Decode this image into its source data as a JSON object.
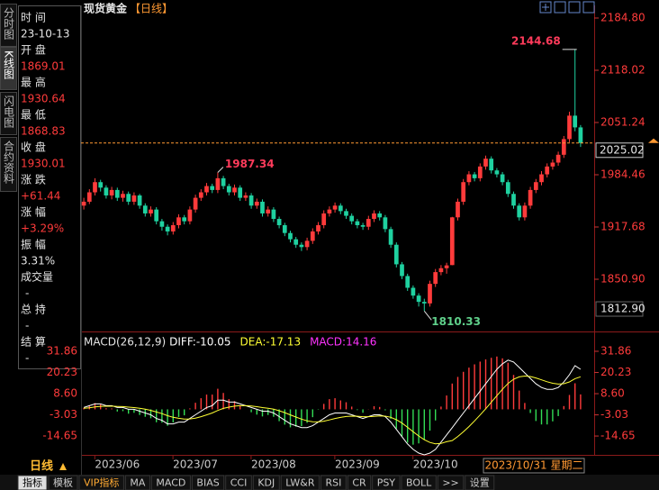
{
  "app": {
    "sidebar": [
      "分时图",
      "K线图",
      "闪电图",
      "合约资料"
    ],
    "info": {
      "time_label": "时 间",
      "date": "23-10-13",
      "open_label": "开 盘",
      "high_label": "最 高",
      "low_label": "最 低",
      "close_label": "收 盘",
      "change_label": "涨 跌",
      "change": "+61.44",
      "pct_label": "涨 幅",
      "pct": "+3.29%",
      "amp_label": "振 幅",
      "amp": "3.31%",
      "vol_label": "成交量",
      "vol": "-",
      "oi_label": "总 持",
      "oi": "-",
      "settle_label": "结 算",
      "settle": "-"
    },
    "period": "日线",
    "cursor_date": "2023/10/31 星期二",
    "tabs": [
      "指标",
      "模板",
      "VIP指标",
      "MA",
      "MACD",
      "BIAS",
      "CCI",
      "KDJ",
      "LW&R",
      "RSI",
      "CR",
      "PSY",
      "BOLL",
      ">>",
      "设置"
    ]
  },
  "chart_data": [
    {
      "type": "candlestick",
      "title": "现货黄金",
      "subtitle": "【日线】",
      "categories": [
        null,
        null,
        null,
        null,
        null,
        null,
        "2023/06",
        null,
        null,
        null,
        null,
        null,
        null,
        null,
        null,
        null,
        null,
        null,
        null,
        null,
        "2023/07",
        null,
        null,
        null,
        null,
        null,
        null,
        null,
        null,
        null,
        null,
        null,
        null,
        null,
        "2023/08",
        null,
        null,
        null,
        null,
        null,
        null,
        null,
        null,
        null,
        null,
        null,
        null,
        null,
        null,
        "2023/09",
        null,
        null,
        null,
        null,
        null,
        null,
        null,
        null,
        null,
        null,
        null,
        null,
        null,
        "2023/10",
        null,
        null,
        null,
        null,
        null,
        null,
        null,
        null,
        null,
        null,
        null,
        null,
        null,
        null,
        null,
        null,
        null,
        null,
        null,
        null,
        null,
        null,
        null,
        null,
        null,
        null
      ],
      "open": [
        1945,
        1950,
        1962,
        1975,
        1968,
        1958,
        1965,
        1955,
        1960,
        1950,
        1958,
        1945,
        1935,
        1940,
        1925,
        1918,
        1912,
        1920,
        1930,
        1925,
        1940,
        1955,
        1962,
        1970,
        1965,
        1980,
        1970,
        1962,
        1968,
        1955,
        1958,
        1945,
        1950,
        1935,
        1940,
        1928,
        1920,
        1910,
        1902,
        1895,
        1892,
        1900,
        1912,
        1920,
        1935,
        1940,
        1945,
        1938,
        1932,
        1925,
        1920,
        1918,
        1928,
        1935,
        1930,
        1915,
        1895,
        1870,
        1855,
        1840,
        1830,
        1822,
        1820,
        1845,
        1860,
        1865,
        1869.01,
        1930.01,
        1950,
        1975,
        1985,
        1980,
        1995,
        2005,
        1990,
        1985,
        1975,
        1960,
        1945,
        1930,
        1945,
        1965,
        1975,
        1985,
        1995,
        2000,
        2010,
        2030,
        2060,
        2045
      ],
      "high": [
        1955,
        1966,
        1980,
        1978,
        1971,
        1969,
        1968,
        1964,
        1963,
        1962,
        1960,
        1948,
        1944,
        1943,
        1928,
        1921,
        1924,
        1934,
        1933,
        1944,
        1959,
        1966,
        1974,
        1973,
        1987.34,
        1983,
        1973,
        1972,
        1971,
        1962,
        1961,
        1954,
        1953,
        1944,
        1943,
        1931,
        1923,
        1913,
        1905,
        1898,
        1904,
        1916,
        1924,
        1939,
        1944,
        1949,
        1948,
        1941,
        1935,
        1928,
        1923,
        1932,
        1939,
        1938,
        1933,
        1918,
        1898,
        1873,
        1858,
        1843,
        1833,
        1826,
        1849,
        1864,
        1869,
        1872,
        1930.64,
        1954,
        1979,
        1989,
        1988,
        1999,
        2009,
        2008,
        1993,
        1988,
        1978,
        1963,
        1948,
        1949,
        1969,
        1979,
        1989,
        1999,
        2004,
        2014,
        2034,
        2065,
        2144.68,
        2048
      ],
      "low": [
        1940,
        1947,
        1958,
        1963,
        1954,
        1953,
        1951,
        1950,
        1946,
        1946,
        1941,
        1931,
        1931,
        1921,
        1913,
        1907,
        1908,
        1916,
        1921,
        1921,
        1936,
        1951,
        1958,
        1961,
        1961,
        1966,
        1958,
        1958,
        1951,
        1951,
        1941,
        1941,
        1931,
        1931,
        1924,
        1916,
        1906,
        1898,
        1891,
        1887,
        1888,
        1896,
        1908,
        1916,
        1931,
        1936,
        1934,
        1928,
        1921,
        1916,
        1914,
        1914,
        1924,
        1926,
        1911,
        1891,
        1866,
        1851,
        1836,
        1826,
        1816,
        1810.33,
        1816,
        1841,
        1856,
        1858,
        1868.83,
        1926,
        1946,
        1971,
        1976,
        1976,
        1991,
        1986,
        1981,
        1971,
        1956,
        1941,
        1926,
        1926,
        1941,
        1961,
        1971,
        1981,
        1991,
        1996,
        2006,
        2026,
        2040,
        2020
      ],
      "close": [
        1950,
        1962,
        1975,
        1968,
        1958,
        1965,
        1955,
        1960,
        1950,
        1958,
        1945,
        1935,
        1940,
        1925,
        1918,
        1912,
        1920,
        1930,
        1925,
        1940,
        1955,
        1962,
        1970,
        1965,
        1980,
        1970,
        1962,
        1968,
        1955,
        1958,
        1945,
        1950,
        1935,
        1940,
        1928,
        1920,
        1910,
        1902,
        1895,
        1892,
        1900,
        1912,
        1920,
        1935,
        1940,
        1945,
        1938,
        1932,
        1925,
        1920,
        1918,
        1928,
        1935,
        1930,
        1915,
        1895,
        1870,
        1855,
        1840,
        1830,
        1822,
        1820,
        1845,
        1860,
        1865,
        1868.57,
        1930.01,
        1950,
        1975,
        1985,
        1980,
        1995,
        2005,
        1990,
        1985,
        1975,
        1960,
        1945,
        1930,
        1945,
        1965,
        1975,
        1985,
        1995,
        2000,
        2010,
        2030,
        2060,
        2045,
        2025.02
      ],
      "up_color": "#ff3b3b",
      "down_color": "#1fd1a0",
      "last_color": "#ff9933",
      "ylim": [
        1787.6,
        2198.6
      ],
      "yticks": [
        {
          "value": 2184.8,
          "label": "2184.80"
        },
        2118.02,
        2051.24,
        1984.46,
        1917.68,
        {
          "value": 1850.9,
          "label": "1850.90"
        }
      ],
      "ymin_label": {
        "value": 1812.9,
        "label": "1812.90"
      },
      "annotations": [
        2144.68,
        1987.34,
        1810.33
      ]
    },
    {
      "type": "macd",
      "title": "MACD(26,12,9)",
      "legend": [
        "DIFF:-10.05",
        "DEA:-17.13",
        "MACD:14.16"
      ],
      "series": [
        {
          "color": "#ffffff",
          "values": [
            1,
            2,
            3,
            3,
            2,
            2,
            1,
            1,
            0,
            0,
            -1,
            -2,
            -3,
            -5,
            -6,
            -8,
            -8,
            -7,
            -7,
            -5,
            -3,
            -1,
            1,
            2,
            5,
            5,
            4,
            4,
            3,
            2,
            1,
            0,
            -1,
            -1,
            -2,
            -4,
            -6,
            -8,
            -9,
            -10,
            -10,
            -9,
            -7,
            -5,
            -3,
            -2,
            -2,
            -2,
            -3,
            -4,
            -5,
            -4,
            -3,
            -3,
            -4,
            -7,
            -11,
            -15,
            -19,
            -22,
            -24,
            -25,
            -24,
            -22,
            -18,
            -14,
            -10.05,
            -6,
            -2,
            2,
            6,
            10,
            14,
            18,
            22,
            25,
            27,
            26,
            23,
            20,
            17,
            14,
            12,
            11,
            11,
            12,
            15,
            19,
            24,
            22
          ]
        },
        {
          "color": "#ffff33",
          "values": [
            0.6,
            0.88,
            1.3,
            1.64,
            1.71,
            1.77,
            1.62,
            1.49,
            1.19,
            0.95,
            0.56,
            0.05,
            -0.56,
            -1.45,
            -2.36,
            -3.49,
            -4.39,
            -4.91,
            -5.33,
            -5.26,
            -4.81,
            -4.05,
            -3.04,
            -2.03,
            -0.63,
            0.5,
            1.2,
            1.76,
            2.0,
            2.0,
            1.8,
            1.44,
            0.95,
            0.56,
            0.05,
            -0.76,
            -1.81,
            -3.05,
            -4.24,
            -5.39,
            -6.31,
            -6.85,
            -6.88,
            -6.5,
            -5.8,
            -5.04,
            -4.43,
            -3.95,
            -3.76,
            -3.8,
            -4.04,
            -4.03,
            -3.83,
            -3.66,
            -3.73,
            -4.38,
            -5.71,
            -7.56,
            -9.85,
            -12.28,
            -14.63,
            -16.7,
            -18.16,
            -18.93,
            -18.74,
            -17.8,
            -17.13,
            -14.9,
            -12.32,
            -9.46,
            -6.37,
            -3.1,
            0.32,
            3.86,
            7.49,
            10.99,
            14.19,
            16.55,
            17.84,
            18.27,
            18.02,
            17.21,
            16.17,
            15.14,
            14.31,
            13.85,
            14.08,
            15.06,
            16.85,
            17.88
          ]
        },
        {
          "color": "#ff33ff",
          "values": [
            0.8,
            2.2,
            3.4,
            2.7,
            0.6,
            0.5,
            -1.2,
            -1.0,
            -2.4,
            -1.9,
            -3.1,
            -4.1,
            -4.9,
            -7.1,
            -7.3,
            -9.0,
            -7.2,
            -4.2,
            -3.3,
            0.5,
            3.6,
            6.1,
            8.1,
            8.1,
            11.3,
            9.0,
            5.6,
            4.5,
            2.0,
            0,
            -1.6,
            -2.9,
            -3.9,
            -3.1,
            -4.1,
            -6.5,
            -8.4,
            -9.9,
            -9.5,
            -9.2,
            -7.4,
            -4.3,
            -0.2,
            3.0,
            5.6,
            6.1,
            4.9,
            3.9,
            1.5,
            -0.4,
            -1.9,
            0.1,
            1.7,
            1.3,
            -0.5,
            -5.2,
            -10.6,
            -14.9,
            -18.3,
            -19.4,
            -18.7,
            -16.6,
            -11.7,
            -6.1,
            1.5,
            7.6,
            14.16,
            17.8,
            20.6,
            22.9,
            24.7,
            26.2,
            27.4,
            28.3,
            29.0,
            28.0,
            25.6,
            18.9,
            10.3,
            3.5,
            -2.0,
            -6.4,
            -8.3,
            -8.3,
            -6.6,
            -3.7,
            1.8,
            7.9,
            14.3,
            8.2
          ]
        }
      ],
      "up_color": "#ff3b3b",
      "down_color": "#33dd55",
      "ylim": [
        -25,
        37.8
      ],
      "yticks": [
        31.86,
        20.23,
        {
          "value": 8.6,
          "label": "8.60"
        },
        -3.03,
        -14.65
      ]
    }
  ]
}
